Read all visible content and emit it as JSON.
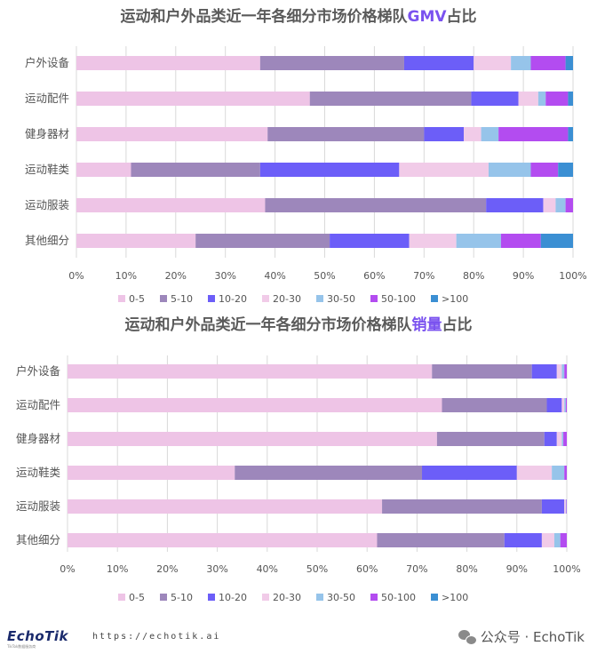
{
  "colors": {
    "0-5": "#eec4e6",
    "5-10": "#9d87bb",
    "10-20": "#6c5ef8",
    "20-30": "#f1cbe8",
    "30-50": "#96c4ea",
    "50-100": "#b34cf0",
    ">100": "#3b8fd3",
    "title": "#5a5a5a",
    "title_accent": "#7a52ef",
    "axis_text": "#555555",
    "grid": "#d9d9d9"
  },
  "chart_data": [
    {
      "type": "bar",
      "orientation": "horizontal",
      "stacked": true,
      "title_prefix": "运动和户外品类近一年各细分市场价格梯队",
      "title_highlight": "GMV",
      "title_suffix": "占比",
      "xlim": [
        0,
        100
      ],
      "xticks": [
        "0%",
        "10%",
        "20%",
        "30%",
        "40%",
        "50%",
        "60%",
        "70%",
        "80%",
        "90%",
        "100%"
      ],
      "grid": true,
      "legend_position": "bottom",
      "categories": [
        "户外设备",
        "运动配件",
        "健身器材",
        "运动鞋类",
        "运动服装",
        "其他细分"
      ],
      "series": [
        {
          "name": "0-5",
          "values": [
            37,
            47,
            38.5,
            11,
            38,
            24
          ]
        },
        {
          "name": "5-10",
          "values": [
            29,
            32.5,
            31.5,
            26,
            44.5,
            27
          ]
        },
        {
          "name": "10-20",
          "values": [
            14,
            9.5,
            8,
            28,
            11.5,
            16
          ]
        },
        {
          "name": "20-30",
          "values": [
            7.5,
            4,
            3.5,
            18,
            2.5,
            9.5
          ]
        },
        {
          "name": "30-50",
          "values": [
            4,
            1.5,
            3.5,
            8.5,
            2,
            9
          ]
        },
        {
          "name": "50-100",
          "values": [
            7,
            4.5,
            14,
            5.5,
            1.5,
            8
          ]
        },
        {
          ">100": "",
          "name": ">100",
          "values": [
            1.5,
            1,
            1,
            3,
            0,
            6.5
          ]
        }
      ]
    },
    {
      "type": "bar",
      "orientation": "horizontal",
      "stacked": true,
      "title_prefix": "运动和户外品类近一年各细分市场价格梯队",
      "title_highlight": "销量",
      "title_suffix": "占比",
      "xlim": [
        0,
        100
      ],
      "xticks": [
        "0%",
        "10%",
        "20%",
        "30%",
        "40%",
        "50%",
        "60%",
        "70%",
        "80%",
        "90%",
        "100%"
      ],
      "grid": true,
      "legend_position": "bottom",
      "categories": [
        "户外设备",
        "运动配件",
        "健身器材",
        "运动鞋类",
        "运动服装",
        "其他细分"
      ],
      "series": [
        {
          "name": "0-5",
          "values": [
            73,
            75,
            74,
            33.5,
            63,
            62
          ]
        },
        {
          "name": "5-10",
          "values": [
            20,
            21,
            21.5,
            37.5,
            32,
            25.5
          ]
        },
        {
          "name": "10-20",
          "values": [
            5,
            3,
            2.5,
            19,
            4.5,
            7.5
          ]
        },
        {
          "name": "20-30",
          "values": [
            1,
            0.5,
            1,
            7,
            0.3,
            2.5
          ]
        },
        {
          "name": "30-50",
          "values": [
            0.5,
            0.3,
            0.3,
            2.5,
            0.1,
            1.2
          ]
        },
        {
          "name": "50-100",
          "values": [
            0.5,
            0.2,
            0.7,
            0.5,
            0.1,
            1.3
          ]
        },
        {
          "name": ">100",
          "values": [
            0,
            0,
            0,
            0,
            0,
            0
          ]
        }
      ]
    }
  ],
  "footer": {
    "logo": "EchoTik",
    "logo_sub": "TikTok数据服务商",
    "url": "https://echotik.ai",
    "wechat_label": "公众号 · EchoTik"
  }
}
